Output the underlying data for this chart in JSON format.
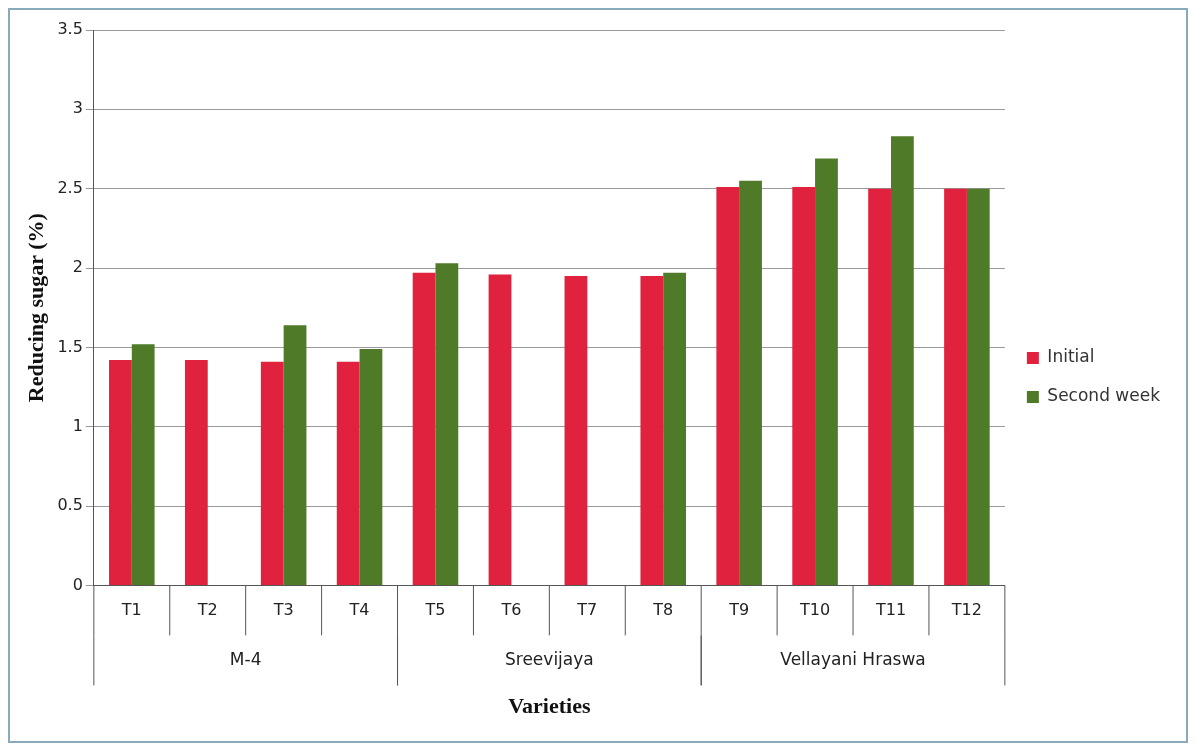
{
  "chart_data": {
    "type": "bar",
    "xlabel": "Varieties",
    "ylabel": "Reducing sugar (%)",
    "categories": [
      "T1",
      "T2",
      "T3",
      "T4",
      "T5",
      "T6",
      "T7",
      "T8",
      "T9",
      "T10",
      "T11",
      "T12"
    ],
    "series": [
      {
        "name": "Initial",
        "color": "#e0223f",
        "values": [
          1.42,
          1.42,
          1.41,
          1.41,
          1.97,
          1.96,
          1.95,
          1.95,
          2.51,
          2.51,
          2.5,
          2.5
        ]
      },
      {
        "name": "Second week",
        "color": "#4f7a28",
        "values": [
          1.52,
          null,
          1.64,
          1.49,
          2.03,
          null,
          null,
          1.97,
          2.55,
          2.69,
          2.83,
          2.5
        ]
      }
    ],
    "ylim": [
      0,
      3.5
    ],
    "yticks": [
      0,
      0.5,
      1,
      1.5,
      2,
      2.5,
      3,
      3.5
    ],
    "grid": "y",
    "legend": "right",
    "annotations": [
      "M-4",
      "Sreevijaya",
      "Vellayani Hraswa"
    ]
  }
}
